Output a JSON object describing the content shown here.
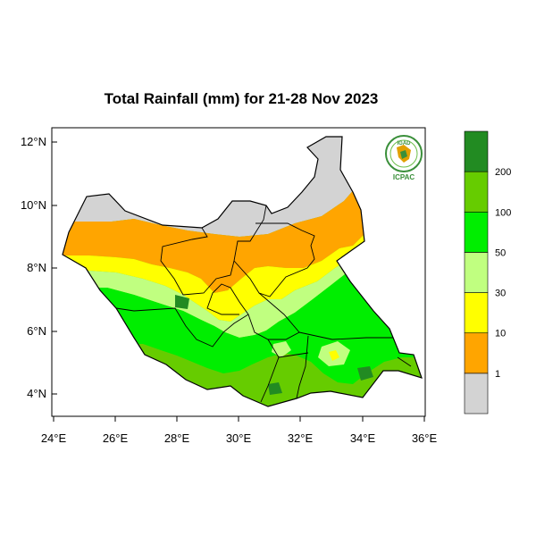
{
  "title": "Total Rainfall (mm) for 21-28 Nov 2023",
  "map": {
    "lat_ticks": [
      "12°N",
      "10°N",
      "8°N",
      "6°N",
      "4°N"
    ],
    "lon_ticks": [
      "24°E",
      "26°E",
      "28°E",
      "30°E",
      "32°E",
      "34°E",
      "36°E"
    ],
    "extent": {
      "lon_min": 24,
      "lon_max": 36,
      "lat_min": 3.4,
      "lat_max": 12.4
    },
    "region": "South Sudan"
  },
  "logo": {
    "top_text": "IGAD",
    "bottom_text": "ICPAC"
  },
  "legend": {
    "units": "mm",
    "bins": [
      {
        "color": "#d3d3d3",
        "label": "1"
      },
      {
        "color": "#ffa500",
        "label": "10"
      },
      {
        "color": "#ffff00",
        "label": "30"
      },
      {
        "color": "#c0ff80",
        "label": "50"
      },
      {
        "color": "#00ee00",
        "label": "100"
      },
      {
        "color": "#66cc00",
        "label": "200"
      },
      {
        "color": "#228b22",
        "label": ""
      }
    ]
  }
}
